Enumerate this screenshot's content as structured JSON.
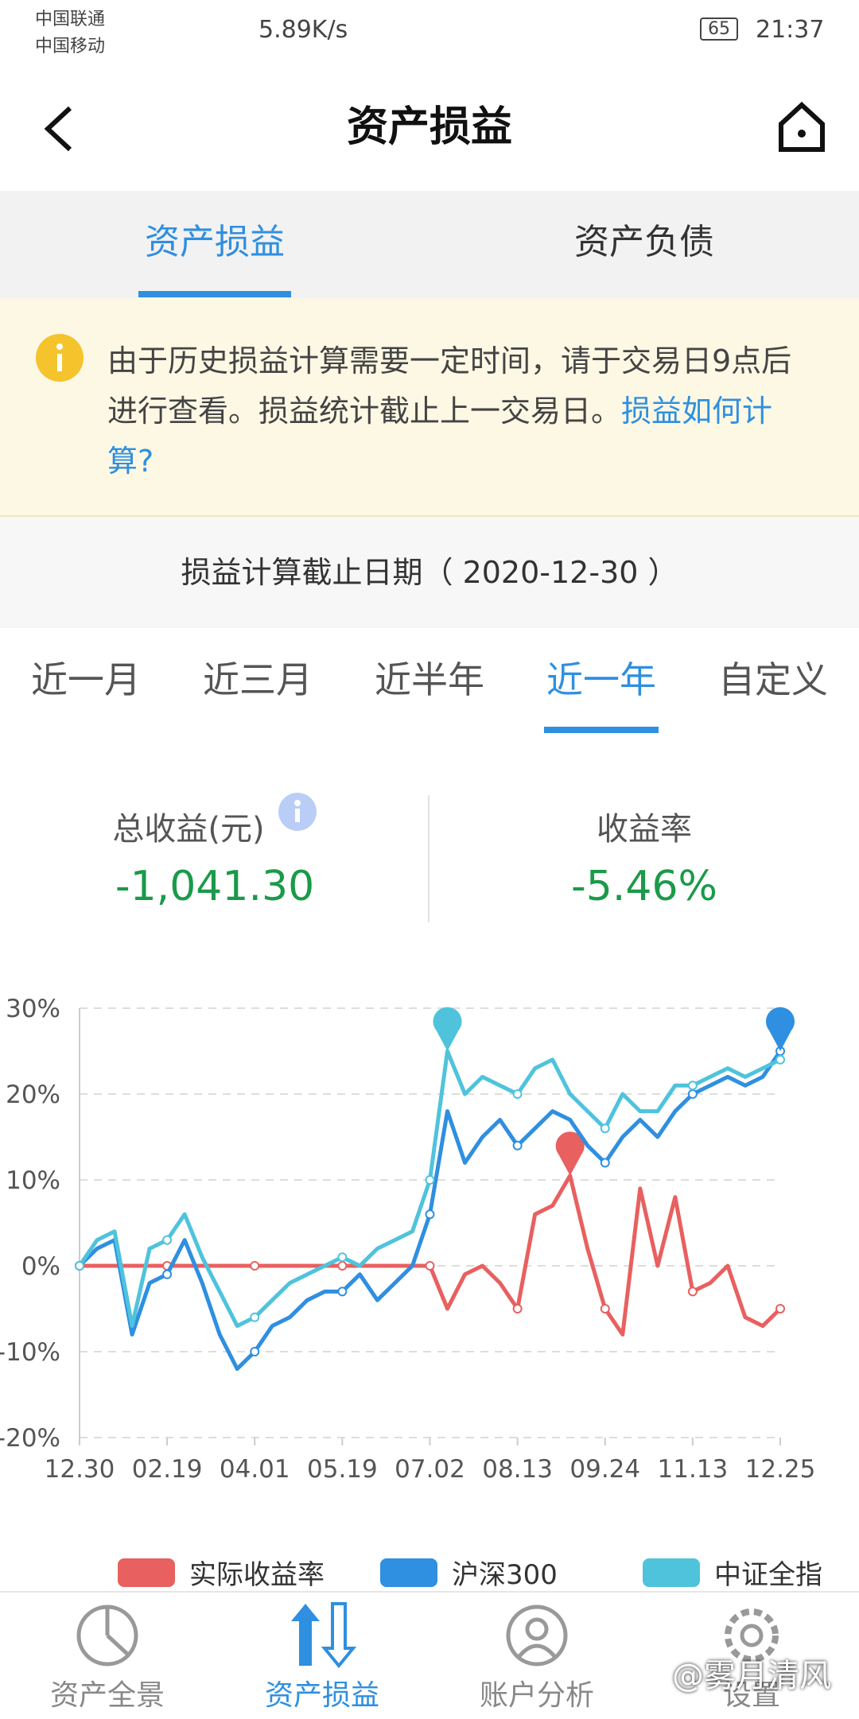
{
  "status_bar": {
    "carrier1": "中国联通",
    "carrier2": "中国移动",
    "speed": "5.89K/s",
    "battery": "65",
    "time": "21:37"
  },
  "header": {
    "title": "资产损益"
  },
  "tabs": [
    "资产损益",
    "资产负债"
  ],
  "notice": {
    "text": "由于历史损益计算需要一定时间，请于交易日9点后进行查看。损益统计截止上一交易日。",
    "link": "损益如何计算?"
  },
  "date_row": "损益计算截止日期（ 2020-12-30 ）",
  "periods": [
    "近一月",
    "近三月",
    "近半年",
    "近一年",
    "自定义"
  ],
  "summary": {
    "total_label": "总收益(元)",
    "total_value": "-1,041.30",
    "rate_label": "收益率",
    "rate_value": "-5.46%"
  },
  "chart_data": {
    "type": "line",
    "categories": [
      "12.30",
      null,
      null,
      null,
      null,
      "02.19",
      null,
      null,
      null,
      null,
      "04.01",
      null,
      null,
      null,
      null,
      "05.19",
      null,
      null,
      null,
      null,
      "07.02",
      null,
      null,
      null,
      null,
      "08.13",
      null,
      null,
      null,
      null,
      "09.24",
      null,
      null,
      null,
      null,
      "11.13",
      null,
      null,
      null,
      null,
      "12.25"
    ],
    "series": [
      {
        "name": "实际收益率",
        "color": "#e8605f",
        "values": [
          0,
          0,
          0,
          0,
          0,
          0,
          0,
          0,
          0,
          0,
          0,
          0,
          0,
          0,
          0,
          0,
          0,
          0,
          0,
          0,
          0,
          -5,
          -1,
          0,
          -2,
          -5,
          6,
          7,
          10.5,
          2,
          -5,
          -8,
          9,
          0,
          8,
          -3,
          -2,
          0,
          -6,
          -7,
          -5
        ]
      },
      {
        "name": "沪深300",
        "color": "#2f8fe0",
        "values": [
          0,
          2,
          3,
          -8,
          -2,
          -1,
          3,
          -2,
          -8,
          -12,
          -10,
          -7,
          -6,
          -4,
          -3,
          -3,
          -1,
          -4,
          -2,
          0,
          6,
          18,
          12,
          15,
          17,
          14,
          16,
          18,
          17,
          14,
          12,
          15,
          17,
          15,
          18,
          20,
          21,
          22,
          21,
          22,
          25
        ]
      },
      {
        "name": "中证全指",
        "color": "#4fc3dc",
        "values": [
          0,
          3,
          4,
          -7,
          2,
          3,
          6,
          1,
          -3,
          -7,
          -6,
          -4,
          -2,
          -1,
          0,
          1,
          0,
          2,
          3,
          4,
          10,
          25,
          20,
          22,
          21,
          20,
          23,
          24,
          20,
          18,
          16,
          20,
          18,
          18,
          21,
          21,
          22,
          23,
          22,
          23,
          24
        ]
      }
    ],
    "ylim": [
      -20,
      30
    ],
    "yticks": [
      {
        "value": -20,
        "label": "-20%"
      },
      {
        "value": -10,
        "label": "-10%"
      },
      {
        "value": 0,
        "label": "0%"
      },
      {
        "value": 10,
        "label": "10%"
      },
      {
        "value": 20,
        "label": "20%"
      },
      {
        "value": 30,
        "label": "30%"
      }
    ],
    "grid": true
  },
  "bottom_nav": [
    "资产全景",
    "资产损益",
    "账户分析",
    "设置"
  ],
  "watermark": "@雾月清风"
}
